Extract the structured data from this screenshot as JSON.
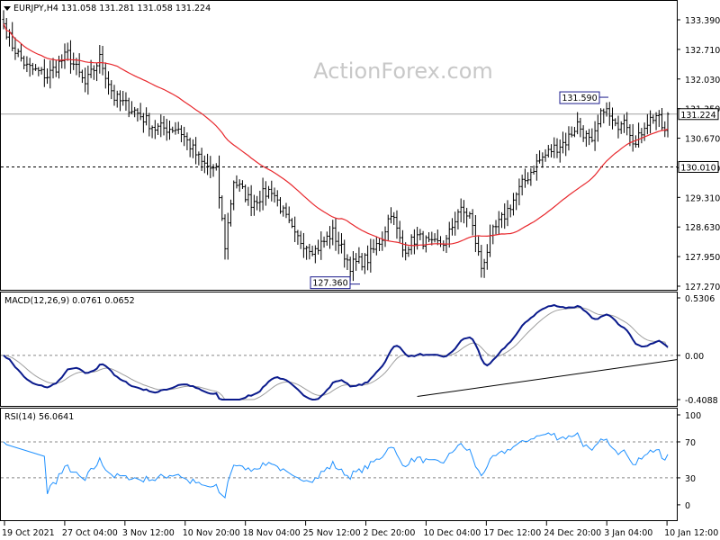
{
  "header": {
    "symbol_line": "EURJPY,H4  131.058 131.281 131.058 131.224",
    "watermark": "ActionForex.com"
  },
  "colors": {
    "price_bar": "#000000",
    "sma": "#e8272c",
    "macd_line": "#0a1a8c",
    "signal_line": "#9e9e9e",
    "rsi_line": "#1e90ff",
    "callout_border": "#1a1a8c"
  },
  "chart_data": [
    {
      "type": "ohlc",
      "title": "EURJPY,H4",
      "ohlc_header": {
        "open": 131.058,
        "high": 131.281,
        "low": 131.058,
        "close": 131.224
      },
      "ylim": [
        127.27,
        133.62
      ],
      "y_ticks": [
        "133.390",
        "132.710",
        "132.030",
        "131.350",
        "130.670",
        "129.990",
        "129.310",
        "128.630",
        "127.950",
        "127.270"
      ],
      "x_ticks": [
        "19 Oct 2021",
        "27 Oct 04:00",
        "3 Nov 12:00",
        "10 Nov 20:00",
        "18 Nov 04:00",
        "25 Nov 12:00",
        "2 Dec 20:00",
        "10 Dec 04:00",
        "17 Dec 12:00",
        "24 Dec 20:00",
        "3 Jan 04:00",
        "10 Jan 12:00"
      ],
      "close_anchors": [
        [
          0,
          133.3
        ],
        [
          3,
          132.8
        ],
        [
          8,
          132.3
        ],
        [
          15,
          132.1
        ],
        [
          22,
          132.6
        ],
        [
          28,
          131.9
        ],
        [
          33,
          132.5
        ],
        [
          38,
          131.6
        ],
        [
          45,
          131.3
        ],
        [
          52,
          130.9
        ],
        [
          60,
          130.9
        ],
        [
          68,
          130.1
        ],
        [
          73,
          129.9
        ],
        [
          76,
          128.2
        ],
        [
          79,
          129.7
        ],
        [
          85,
          129.2
        ],
        [
          92,
          129.5
        ],
        [
          100,
          128.4
        ],
        [
          107,
          128.1
        ],
        [
          113,
          128.5
        ],
        [
          119,
          127.75
        ],
        [
          125,
          127.9
        ],
        [
          130,
          128.4
        ],
        [
          133,
          129.0
        ],
        [
          137,
          128.1
        ],
        [
          142,
          128.4
        ],
        [
          147,
          128.2
        ],
        [
          152,
          128.3
        ],
        [
          156,
          129.0
        ],
        [
          160,
          128.9
        ],
        [
          164,
          127.7
        ],
        [
          168,
          128.5
        ],
        [
          172,
          128.9
        ],
        [
          178,
          129.6
        ],
        [
          183,
          130.1
        ],
        [
          188,
          130.4
        ],
        [
          193,
          130.6
        ],
        [
          197,
          131.0
        ],
        [
          202,
          130.5
        ],
        [
          206,
          131.4
        ],
        [
          210,
          130.9
        ],
        [
          213,
          131.2
        ],
        [
          217,
          130.5
        ],
        [
          220,
          131.0
        ],
        [
          224,
          131.2
        ],
        [
          227,
          130.8
        ]
      ],
      "num_bars": 229,
      "last_close": 131.224,
      "sma_period": 40,
      "sma_line_color": "red",
      "annotations": [
        {
          "label": "131.590",
          "value": 131.59
        },
        {
          "label": "127.360",
          "value": 127.36
        }
      ],
      "horizontal_levels": [
        {
          "label": "131.224",
          "value": 131.224,
          "style": "solid",
          "boxed": true
        },
        {
          "label": "130.010",
          "value": 130.01,
          "style": "dashed",
          "boxed": true
        }
      ],
      "grid": false
    },
    {
      "type": "line",
      "title": "MACD(12,26,9) 0.0761 0.0652",
      "series": [
        {
          "name": "MACD",
          "last_value": 0.0761,
          "color": "#0a1a8c"
        },
        {
          "name": "Signal",
          "last_value": 0.0652,
          "color": "#9e9e9e"
        }
      ],
      "ylim": [
        -0.4088,
        0.5306
      ],
      "y_ticks": [
        "0.5306",
        "0.00",
        "-0.4088"
      ],
      "trendline": {
        "from": [
          142,
          -0.38
        ],
        "to": [
          229,
          -0.04
        ]
      }
    },
    {
      "type": "line",
      "title": "RSI(14) 56.0641",
      "series": [
        {
          "name": "RSI",
          "last_value": 56.0641,
          "color": "#1e90ff"
        }
      ],
      "ylim": [
        0,
        100
      ],
      "y_ticks": [
        "100",
        "70",
        "30",
        "0"
      ],
      "levels": [
        70,
        30
      ]
    }
  ]
}
